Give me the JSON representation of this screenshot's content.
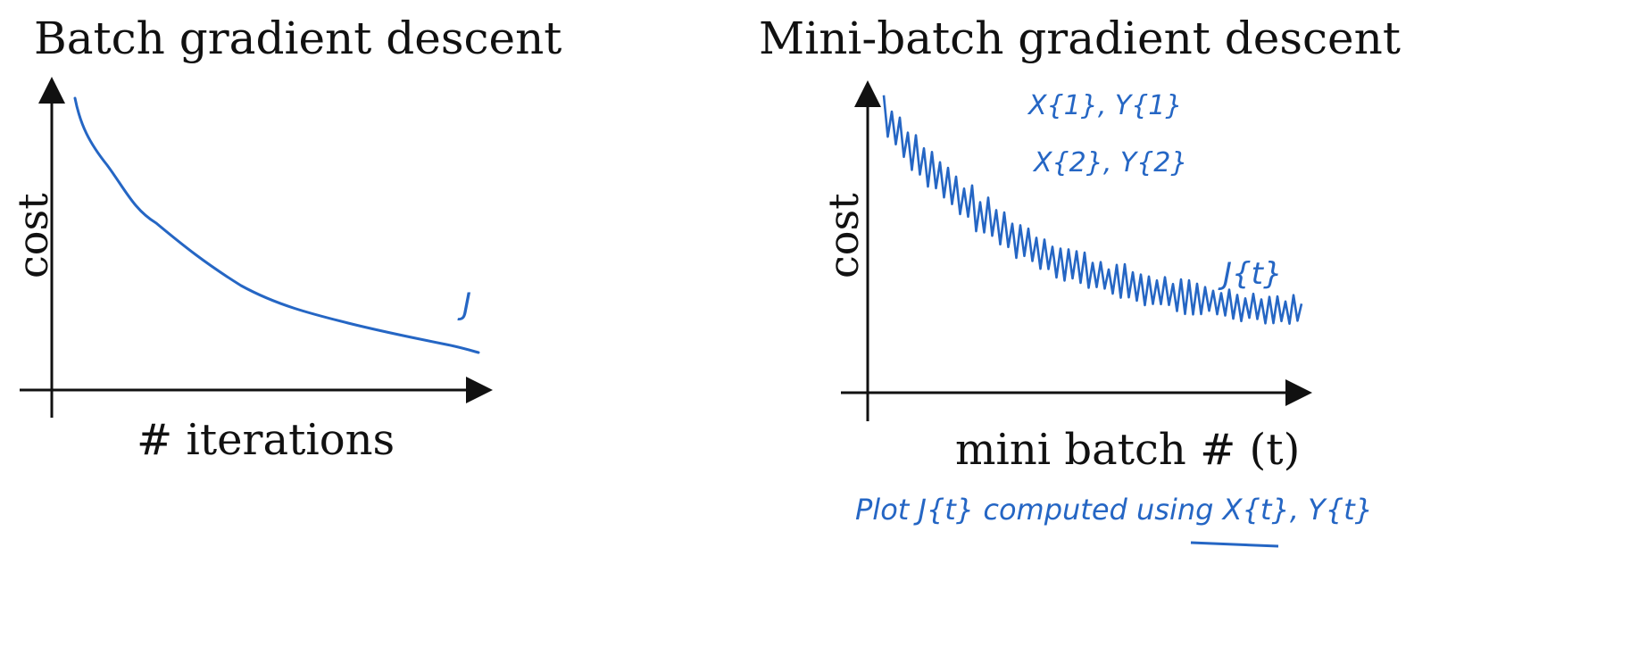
{
  "left": {
    "title": "Batch gradient descent",
    "ylabel": "cost",
    "xlabel": "# iterations",
    "curve_label": "J"
  },
  "right": {
    "title": "Mini-batch gradient descent",
    "ylabel": "cost",
    "xlabel": "mini batch # (t)",
    "annot1": "X{1}, Y{1}",
    "annot2": "X{2}, Y{2}",
    "curve_label": "J{t}",
    "note": "Plot J{t} computed using X{t}, Y{t}"
  },
  "colors": {
    "ink": "#111111",
    "pen": "#2566c4"
  }
}
